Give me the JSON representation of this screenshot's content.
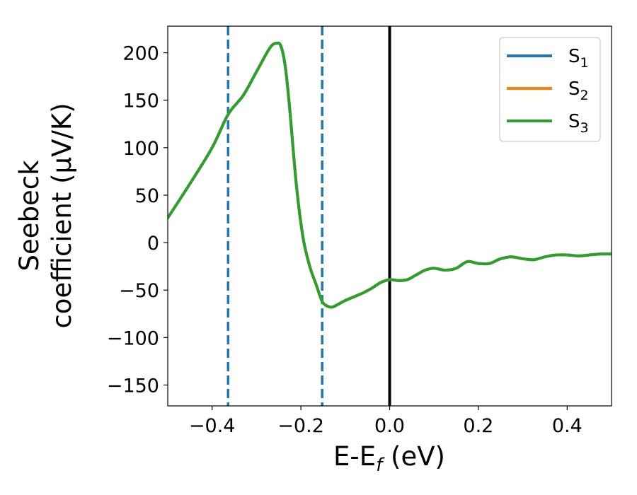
{
  "chart_data": {
    "type": "line",
    "title": "",
    "xlabel": "E-E",
    "xlabel_sub": "f",
    "xlabel_unit": " (eV)",
    "ylabel_line1": "Seebeck",
    "ylabel_line2": "coefficient  (μV/K)",
    "xlim": [
      -0.5,
      0.5
    ],
    "ylim": [
      -172,
      228
    ],
    "x_ticks": [
      -0.4,
      -0.2,
      0.0,
      0.2,
      0.4
    ],
    "x_tick_labels": [
      "−0.4",
      "−0.2",
      "0.0",
      "0.2",
      "0.4"
    ],
    "y_ticks": [
      -150,
      -100,
      -50,
      0,
      50,
      100,
      150,
      200
    ],
    "y_tick_labels": [
      "−150",
      "−100",
      "−50",
      "0",
      "50",
      "100",
      "150",
      "200"
    ],
    "grid": false,
    "legend_position": "top-right",
    "series": [
      {
        "name": "S",
        "name_sub": "1",
        "color": "#1f77b4",
        "x": [
          -0.5,
          -0.45,
          -0.4,
          -0.364,
          -0.33,
          -0.3,
          -0.27,
          -0.255,
          -0.245,
          -0.235,
          -0.225,
          -0.21,
          -0.195,
          -0.18,
          -0.165,
          -0.152,
          -0.14,
          -0.13,
          -0.12,
          -0.1,
          -0.08,
          -0.06,
          -0.04,
          -0.02,
          0.0,
          0.02,
          0.04,
          0.06,
          0.08,
          0.1,
          0.125,
          0.15,
          0.175,
          0.2,
          0.225,
          0.25,
          0.275,
          0.3,
          0.325,
          0.35,
          0.375,
          0.4,
          0.425,
          0.45,
          0.475,
          0.5
        ],
        "y": [
          26,
          62,
          100,
          135,
          155,
          180,
          205,
          210,
          207,
          185,
          140,
          60,
          5,
          -25,
          -45,
          -62,
          -67,
          -68,
          -66,
          -61,
          -57,
          -53,
          -48,
          -42,
          -39,
          -40,
          -39,
          -34,
          -29,
          -27,
          -29,
          -27,
          -20,
          -22,
          -22,
          -17,
          -15,
          -17,
          -18,
          -15,
          -13,
          -13,
          -14,
          -13,
          -12,
          -12
        ]
      },
      {
        "name": "S",
        "name_sub": "2",
        "color": "#ff7f0e",
        "x": [
          -0.5,
          -0.45,
          -0.4,
          -0.364,
          -0.33,
          -0.3,
          -0.27,
          -0.255,
          -0.245,
          -0.235,
          -0.225,
          -0.21,
          -0.195,
          -0.18,
          -0.165,
          -0.152,
          -0.14,
          -0.13,
          -0.12,
          -0.1,
          -0.08,
          -0.06,
          -0.04,
          -0.02,
          0.0,
          0.02,
          0.04,
          0.06,
          0.08,
          0.1,
          0.125,
          0.15,
          0.175,
          0.2,
          0.225,
          0.25,
          0.275,
          0.3,
          0.325,
          0.35,
          0.375,
          0.4,
          0.425,
          0.45,
          0.475,
          0.5
        ],
        "y": [
          26,
          62,
          100,
          135,
          155,
          180,
          205,
          210,
          207,
          185,
          140,
          60,
          5,
          -25,
          -45,
          -62,
          -67,
          -68,
          -66,
          -61,
          -57,
          -53,
          -48,
          -42,
          -39,
          -40,
          -39,
          -34,
          -29,
          -27,
          -29,
          -27,
          -20,
          -22,
          -22,
          -17,
          -15,
          -17,
          -18,
          -15,
          -13,
          -13,
          -14,
          -13,
          -12,
          -12
        ]
      },
      {
        "name": "S",
        "name_sub": "3",
        "color": "#2ca02c",
        "x": [
          -0.5,
          -0.45,
          -0.4,
          -0.364,
          -0.33,
          -0.3,
          -0.27,
          -0.255,
          -0.245,
          -0.235,
          -0.225,
          -0.21,
          -0.195,
          -0.18,
          -0.165,
          -0.152,
          -0.14,
          -0.13,
          -0.12,
          -0.1,
          -0.08,
          -0.06,
          -0.04,
          -0.02,
          0.0,
          0.02,
          0.04,
          0.06,
          0.08,
          0.1,
          0.125,
          0.15,
          0.175,
          0.2,
          0.225,
          0.25,
          0.275,
          0.3,
          0.325,
          0.35,
          0.375,
          0.4,
          0.425,
          0.45,
          0.475,
          0.5
        ],
        "y": [
          26,
          62,
          100,
          135,
          155,
          180,
          205,
          210,
          207,
          185,
          140,
          60,
          5,
          -25,
          -45,
          -62,
          -67,
          -68,
          -66,
          -61,
          -57,
          -53,
          -48,
          -42,
          -39,
          -40,
          -39,
          -34,
          -29,
          -27,
          -29,
          -27,
          -20,
          -22,
          -22,
          -17,
          -15,
          -17,
          -18,
          -15,
          -13,
          -13,
          -14,
          -13,
          -12,
          -12
        ]
      }
    ],
    "vertical_lines": [
      {
        "x": -0.364,
        "style": "dashed",
        "color": "#1f77b4"
      },
      {
        "x": -0.152,
        "style": "dashed",
        "color": "#1f77b4"
      },
      {
        "x": 0.0,
        "style": "solid",
        "color": "#000000"
      }
    ]
  }
}
